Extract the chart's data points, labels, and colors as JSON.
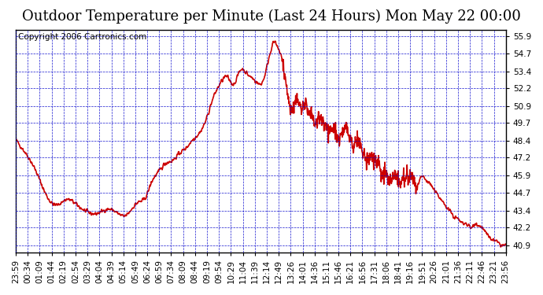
{
  "title": "Outdoor Temperature per Minute (Last 24 Hours) Mon May 22 00:00",
  "copyright": "Copyright 2006 Cartronics.com",
  "background_color": "#ffffff",
  "plot_background": "#ffffff",
  "line_color": "#cc0000",
  "grid_color": "#0000cc",
  "yticks": [
    40.9,
    42.2,
    43.4,
    44.7,
    45.9,
    47.2,
    48.4,
    49.7,
    50.9,
    52.2,
    53.4,
    54.7,
    55.9
  ],
  "ylim": [
    40.4,
    56.4
  ],
  "xtick_labels": [
    "23:59",
    "00:34",
    "01:09",
    "01:44",
    "02:19",
    "02:54",
    "03:29",
    "04:04",
    "04:39",
    "05:14",
    "05:49",
    "06:24",
    "06:59",
    "07:34",
    "08:09",
    "08:44",
    "09:19",
    "09:54",
    "10:29",
    "11:04",
    "11:39",
    "12:14",
    "12:49",
    "13:26",
    "14:01",
    "14:36",
    "15:11",
    "15:46",
    "16:21",
    "16:56",
    "17:31",
    "18:06",
    "18:41",
    "19:16",
    "19:51",
    "20:26",
    "21:01",
    "21:36",
    "22:11",
    "22:46",
    "23:21",
    "23:56"
  ],
  "title_fontsize": 13,
  "copyright_fontsize": 7.5,
  "tick_fontsize": 7.5,
  "line_width": 1.2,
  "keypoints_x": [
    0,
    30,
    60,
    90,
    120,
    150,
    180,
    210,
    240,
    270,
    300,
    320,
    340,
    360,
    380,
    400,
    420,
    440,
    460,
    480,
    500,
    520,
    540,
    560,
    580,
    600,
    620,
    640,
    660,
    680,
    700,
    720,
    730,
    740,
    750,
    760,
    770,
    780,
    790,
    800,
    810,
    820,
    830,
    840,
    850,
    860,
    870,
    880,
    890,
    900,
    910,
    920,
    930,
    940,
    950,
    960,
    970,
    980,
    990,
    1000,
    1010,
    1020,
    1030,
    1040,
    1050,
    1060,
    1070,
    1080,
    1090,
    1100,
    1110,
    1120,
    1130,
    1140,
    1150,
    1160,
    1170,
    1180,
    1190,
    1200,
    1210,
    1220,
    1230,
    1240,
    1250,
    1260,
    1270,
    1280,
    1290,
    1300,
    1310,
    1320,
    1330,
    1340,
    1350,
    1360,
    1370,
    1380,
    1390,
    1400,
    1410,
    1420,
    1430,
    1439
  ],
  "keypoints_y": [
    48.5,
    47.5,
    46.2,
    44.5,
    43.8,
    44.2,
    43.8,
    43.3,
    43.2,
    43.5,
    43.2,
    43.0,
    43.5,
    44.0,
    44.3,
    45.5,
    46.2,
    46.8,
    47.0,
    47.5,
    47.9,
    48.5,
    49.0,
    50.0,
    51.5,
    52.5,
    53.0,
    52.5,
    53.5,
    53.2,
    52.8,
    52.5,
    53.0,
    54.0,
    55.0,
    55.5,
    55.0,
    54.5,
    53.0,
    51.5,
    50.5,
    51.0,
    51.2,
    50.8,
    51.0,
    50.5,
    50.2,
    49.5,
    50.2,
    49.8,
    49.5,
    49.0,
    49.3,
    49.0,
    48.5,
    49.0,
    49.5,
    48.8,
    48.0,
    48.4,
    48.0,
    47.5,
    47.2,
    47.0,
    47.2,
    47.0,
    46.5,
    46.0,
    45.8,
    45.5,
    45.9,
    45.8,
    45.5,
    45.9,
    46.0,
    45.8,
    45.5,
    45.2,
    45.9,
    45.7,
    45.5,
    45.2,
    44.8,
    44.5,
    44.2,
    43.8,
    43.5,
    43.2,
    42.9,
    42.8,
    42.5,
    42.5,
    42.3,
    42.2,
    42.5,
    42.3,
    42.2,
    41.8,
    41.5,
    41.3,
    41.2,
    41.0,
    40.9,
    40.9
  ]
}
